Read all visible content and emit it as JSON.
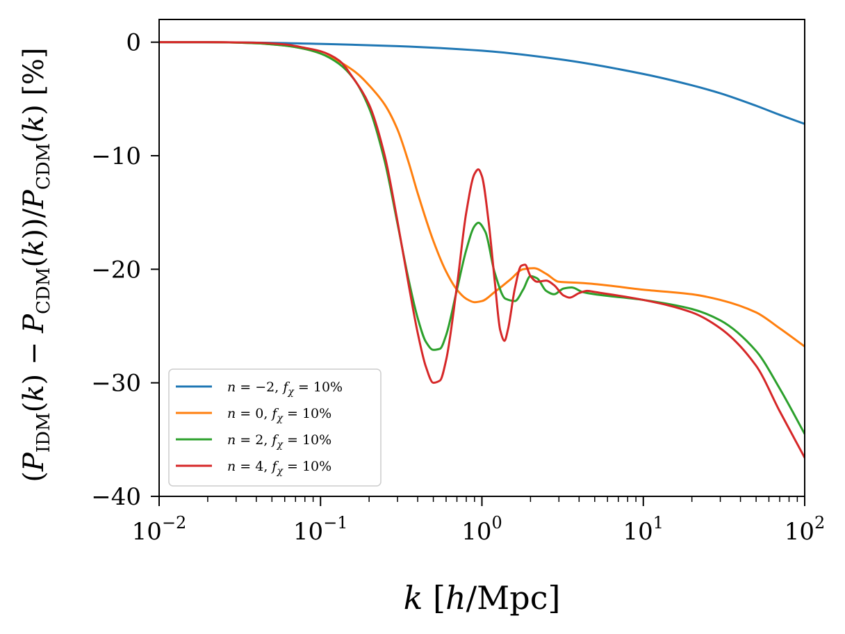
{
  "chart_data": {
    "type": "line",
    "title": "",
    "xlabel": "k [h/Mpc]",
    "ylabel": "(P_IDM(k) − P_CDM(k))/P_CDM(k) [%]",
    "xscale": "log",
    "xlim": [
      0.01,
      100
    ],
    "ylim": [
      -40,
      2
    ],
    "xticks": [
      {
        "value": 0.01,
        "base": "10",
        "exp": "−2"
      },
      {
        "value": 0.1,
        "base": "10",
        "exp": "−1"
      },
      {
        "value": 1,
        "base": "10",
        "exp": "0"
      },
      {
        "value": 10,
        "base": "10",
        "exp": "1"
      },
      {
        "value": 100,
        "base": "10",
        "exp": "2"
      }
    ],
    "yticks": [
      {
        "value": 0,
        "label": "0"
      },
      {
        "value": -10,
        "label": "−10"
      },
      {
        "value": -20,
        "label": "−20"
      },
      {
        "value": -30,
        "label": "−30"
      },
      {
        "value": -40,
        "label": "−40"
      }
    ],
    "legend_position": "lower-left",
    "series": [
      {
        "name": "n = −2, f_χ = 10%",
        "legend": {
          "n": "−2",
          "f": "10%"
        },
        "color": "#1f77b4",
        "points": [
          [
            0.01,
            0
          ],
          [
            0.03,
            -0.02
          ],
          [
            0.1,
            -0.15
          ],
          [
            0.3,
            -0.35
          ],
          [
            1,
            -0.75
          ],
          [
            3,
            -1.5
          ],
          [
            10,
            -2.8
          ],
          [
            20,
            -3.8
          ],
          [
            30,
            -4.5
          ],
          [
            50,
            -5.6
          ],
          [
            70,
            -6.4
          ],
          [
            100,
            -7.2
          ]
        ]
      },
      {
        "name": "n = 0, f_χ = 10%",
        "legend": {
          "n": "0",
          "f": "10%"
        },
        "color": "#ff7f0e",
        "points": [
          [
            0.01,
            0
          ],
          [
            0.02,
            0
          ],
          [
            0.04,
            -0.1
          ],
          [
            0.06,
            -0.3
          ],
          [
            0.08,
            -0.6
          ],
          [
            0.1,
            -1.0
          ],
          [
            0.13,
            -1.7
          ],
          [
            0.17,
            -2.8
          ],
          [
            0.2,
            -3.8
          ],
          [
            0.25,
            -5.5
          ],
          [
            0.3,
            -7.7
          ],
          [
            0.35,
            -10.5
          ],
          [
            0.4,
            -13.3
          ],
          [
            0.5,
            -17.5
          ],
          [
            0.6,
            -20.2
          ],
          [
            0.7,
            -21.8
          ],
          [
            0.8,
            -22.6
          ],
          [
            0.9,
            -22.9
          ],
          [
            1.0,
            -22.8
          ],
          [
            1.2,
            -22.0
          ],
          [
            1.5,
            -20.9
          ],
          [
            1.8,
            -20.0
          ],
          [
            2.1,
            -19.9
          ],
          [
            2.5,
            -20.4
          ],
          [
            3.0,
            -21.1
          ],
          [
            4.0,
            -21.2
          ],
          [
            5,
            -21.3
          ],
          [
            10,
            -21.8
          ],
          [
            20,
            -22.2
          ],
          [
            30,
            -22.7
          ],
          [
            50,
            -23.8
          ],
          [
            70,
            -25.2
          ],
          [
            100,
            -26.8
          ]
        ]
      },
      {
        "name": "n = 2, f_χ = 10%",
        "legend": {
          "n": "2",
          "f": "10%"
        },
        "color": "#2ca02c",
        "points": [
          [
            0.01,
            0
          ],
          [
            0.02,
            0
          ],
          [
            0.04,
            -0.1
          ],
          [
            0.06,
            -0.3
          ],
          [
            0.08,
            -0.6
          ],
          [
            0.1,
            -1.0
          ],
          [
            0.13,
            -1.9
          ],
          [
            0.16,
            -3.2
          ],
          [
            0.2,
            -5.8
          ],
          [
            0.25,
            -10.5
          ],
          [
            0.3,
            -16.0
          ],
          [
            0.35,
            -20.8
          ],
          [
            0.4,
            -24.3
          ],
          [
            0.45,
            -26.4
          ],
          [
            0.5,
            -27.1
          ],
          [
            0.55,
            -27.0
          ],
          [
            0.6,
            -25.8
          ],
          [
            0.7,
            -21.8
          ],
          [
            0.8,
            -18.3
          ],
          [
            0.9,
            -16.2
          ],
          [
            0.95,
            -15.9
          ],
          [
            1.05,
            -16.7
          ],
          [
            1.2,
            -20.3
          ],
          [
            1.4,
            -22.6
          ],
          [
            1.6,
            -22.8
          ],
          [
            1.8,
            -21.8
          ],
          [
            2.0,
            -20.6
          ],
          [
            2.2,
            -20.8
          ],
          [
            2.5,
            -21.9
          ],
          [
            2.8,
            -22.2
          ],
          [
            3.2,
            -21.7
          ],
          [
            3.6,
            -21.6
          ],
          [
            4.2,
            -22.0
          ],
          [
            5,
            -22.2
          ],
          [
            10,
            -22.7
          ],
          [
            20,
            -23.5
          ],
          [
            30,
            -24.5
          ],
          [
            50,
            -27.2
          ],
          [
            70,
            -30.5
          ],
          [
            100,
            -34.5
          ]
        ]
      },
      {
        "name": "n = 4, f_χ = 10%",
        "legend": {
          "n": "4",
          "f": "10%"
        },
        "color": "#d62728",
        "points": [
          [
            0.01,
            0
          ],
          [
            0.02,
            0
          ],
          [
            0.04,
            -0.05
          ],
          [
            0.06,
            -0.2
          ],
          [
            0.08,
            -0.5
          ],
          [
            0.1,
            -0.8
          ],
          [
            0.13,
            -1.6
          ],
          [
            0.16,
            -3.2
          ],
          [
            0.2,
            -5.5
          ],
          [
            0.25,
            -10.0
          ],
          [
            0.3,
            -15.8
          ],
          [
            0.35,
            -21.2
          ],
          [
            0.4,
            -25.6
          ],
          [
            0.45,
            -28.6
          ],
          [
            0.5,
            -30.0
          ],
          [
            0.55,
            -29.8
          ],
          [
            0.6,
            -28.0
          ],
          [
            0.7,
            -21.5
          ],
          [
            0.8,
            -15.0
          ],
          [
            0.9,
            -11.6
          ],
          [
            0.95,
            -11.2
          ],
          [
            1.0,
            -11.8
          ],
          [
            1.1,
            -15.8
          ],
          [
            1.2,
            -21.0
          ],
          [
            1.3,
            -25.4
          ],
          [
            1.38,
            -26.3
          ],
          [
            1.45,
            -25.3
          ],
          [
            1.6,
            -21.7
          ],
          [
            1.75,
            -19.7
          ],
          [
            1.85,
            -19.6
          ],
          [
            2.0,
            -20.6
          ],
          [
            2.2,
            -21.1
          ],
          [
            2.5,
            -21.0
          ],
          [
            2.8,
            -21.4
          ],
          [
            3.2,
            -22.3
          ],
          [
            3.5,
            -22.5
          ],
          [
            4.0,
            -22.1
          ],
          [
            4.5,
            -21.9
          ],
          [
            5,
            -22.0
          ],
          [
            10,
            -22.7
          ],
          [
            20,
            -23.8
          ],
          [
            30,
            -25.2
          ],
          [
            50,
            -28.5
          ],
          [
            70,
            -32.5
          ],
          [
            100,
            -36.6
          ]
        ]
      }
    ]
  }
}
